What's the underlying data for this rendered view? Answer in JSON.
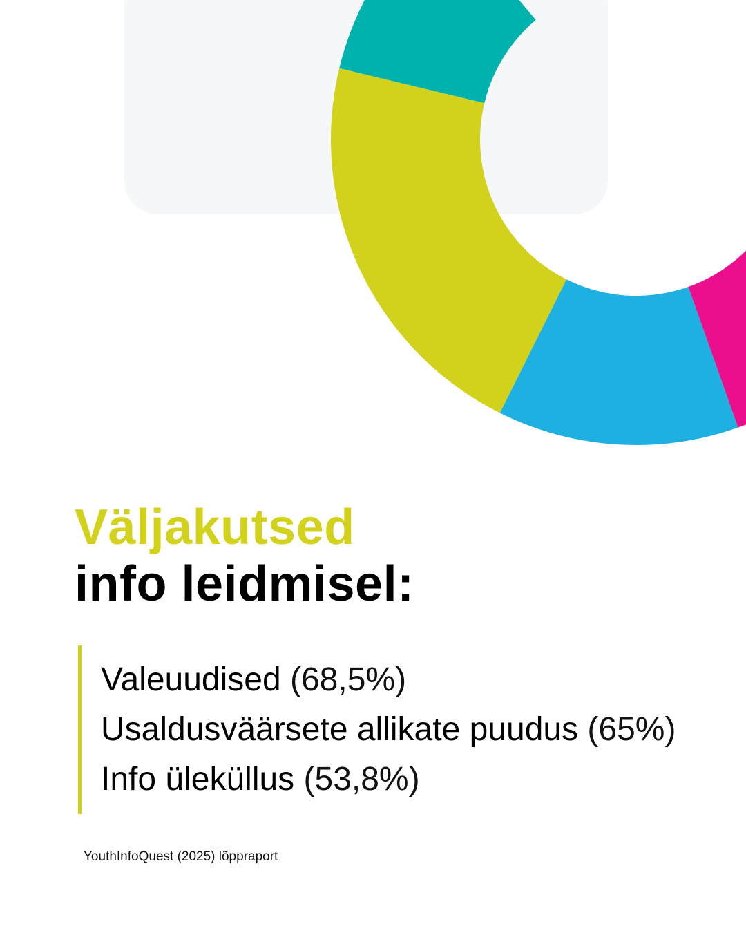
{
  "colors": {
    "accent": "#d2d11b",
    "teal": "#00b2ae",
    "lime": "#d2d11b",
    "cyan": "#1fb0e2",
    "magenta": "#eb0f8e",
    "purple": "#7b2d8e",
    "background_card": "#f5f7f8"
  },
  "decoration": {
    "type": "donut-ring",
    "segments": [
      "teal",
      "lime",
      "cyan",
      "magenta",
      "purple"
    ]
  },
  "heading": {
    "line1": "Väljakutsed",
    "line2": "info leidmisel:"
  },
  "items": [
    {
      "label": "Valeuudised",
      "value": "(68,5%)"
    },
    {
      "label": "Usaldusväärsete allikate puudus",
      "value": "(65%)"
    },
    {
      "label": "Info üleküllus",
      "value": "(53,8%)"
    }
  ],
  "source": "YouthInfoQuest (2025) lõppraport"
}
